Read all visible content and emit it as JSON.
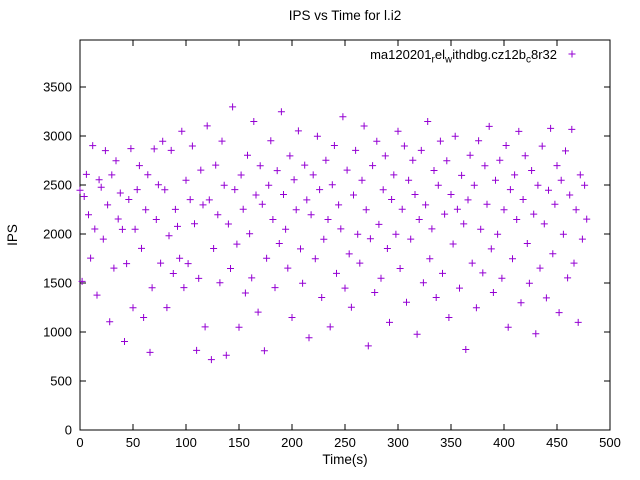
{
  "title": "IPS vs Time for l.i2",
  "chart_data": {
    "type": "scatter",
    "title": "IPS vs Time for l.i2",
    "xlabel": "Time(s)",
    "ylabel": "IPS",
    "xlim": [
      0,
      500
    ],
    "ylim": [
      0,
      3980
    ],
    "xticks": [
      0,
      50,
      100,
      150,
      200,
      250,
      300,
      350,
      400,
      450,
      500
    ],
    "yticks": [
      0,
      500,
      1000,
      1500,
      2000,
      2500,
      3000,
      3500
    ],
    "grid": false,
    "marker": {
      "shape": "plus",
      "color": "#9400d3"
    },
    "legend": {
      "position": "top-right-inside",
      "label_plain": "ma120201_rel_withdbg.cz12b_c8r32",
      "segments": [
        {
          "text": "ma120201",
          "sub": false
        },
        {
          "text": "r",
          "sub": true
        },
        {
          "text": "el",
          "sub": false
        },
        {
          "text": "w",
          "sub": true
        },
        {
          "text": "ithdbg.cz12b",
          "sub": false
        },
        {
          "text": "c",
          "sub": true
        },
        {
          "text": "8r32",
          "sub": false
        }
      ]
    },
    "series": [
      {
        "name": "ma120201_rel_withdbg.cz12b_c8r32",
        "x": [
          0,
          2,
          4,
          6,
          8,
          10,
          12,
          14,
          16,
          18,
          20,
          22,
          24,
          26,
          28,
          30,
          32,
          34,
          36,
          38,
          40,
          42,
          44,
          46,
          48,
          50,
          52,
          54,
          56,
          58,
          60,
          62,
          64,
          66,
          68,
          70,
          72,
          74,
          76,
          78,
          80,
          82,
          84,
          86,
          88,
          90,
          92,
          94,
          96,
          98,
          100,
          102,
          104,
          106,
          108,
          110,
          112,
          114,
          116,
          118,
          120,
          122,
          124,
          126,
          128,
          130,
          132,
          134,
          136,
          138,
          140,
          142,
          144,
          146,
          148,
          150,
          152,
          154,
          156,
          158,
          160,
          162,
          164,
          166,
          168,
          170,
          172,
          174,
          176,
          178,
          180,
          182,
          184,
          186,
          188,
          190,
          192,
          194,
          196,
          198,
          200,
          202,
          204,
          206,
          208,
          210,
          212,
          214,
          216,
          218,
          220,
          222,
          224,
          226,
          228,
          230,
          232,
          234,
          236,
          238,
          240,
          242,
          244,
          246,
          248,
          250,
          252,
          254,
          256,
          258,
          260,
          262,
          264,
          266,
          268,
          270,
          272,
          274,
          276,
          278,
          280,
          282,
          284,
          286,
          288,
          290,
          292,
          294,
          296,
          298,
          300,
          302,
          304,
          306,
          308,
          310,
          312,
          314,
          316,
          318,
          320,
          322,
          324,
          326,
          328,
          330,
          332,
          334,
          336,
          338,
          340,
          342,
          344,
          346,
          348,
          350,
          352,
          354,
          356,
          358,
          360,
          362,
          364,
          366,
          368,
          370,
          372,
          374,
          376,
          378,
          380,
          382,
          384,
          386,
          388,
          390,
          392,
          394,
          396,
          398,
          400,
          402,
          404,
          406,
          408,
          410,
          412,
          414,
          416,
          418,
          420,
          422,
          424,
          426,
          428,
          430,
          432,
          434,
          436,
          438,
          440,
          442,
          444,
          446,
          448,
          450,
          452,
          454,
          456,
          458,
          460,
          462,
          464,
          466,
          468,
          470,
          472,
          474,
          476,
          478
        ],
        "y": [
          2447,
          1516,
          2383,
          2608,
          2196,
          1754,
          2902,
          2051,
          1377,
          2554,
          2478,
          1948,
          2851,
          2297,
          1104,
          2603,
          1652,
          2748,
          2153,
          2419,
          2047,
          903,
          1698,
          2352,
          2872,
          1247,
          2049,
          2453,
          2698,
          1853,
          1148,
          2247,
          2604,
          792,
          1451,
          2869,
          2148,
          2503,
          1703,
          2947,
          2452,
          1249,
          1982,
          2853,
          1597,
          2251,
          2078,
          1752,
          3048,
          1453,
          2548,
          1698,
          2351,
          2898,
          2104,
          812,
          1547,
          2652,
          2297,
          1052,
          3103,
          2348,
          718,
          1852,
          2703,
          2197,
          1503,
          2948,
          2497,
          763,
          2102,
          1648,
          3297,
          2453,
          1897,
          1048,
          2602,
          2253,
          1398,
          2803,
          2003,
          1552,
          3148,
          2398,
          1203,
          2697,
          2303,
          808,
          1752,
          2498,
          2952,
          2148,
          1453,
          2647,
          1903,
          3247,
          2403,
          2048,
          1652,
          2797,
          1148,
          2553,
          2247,
          3052,
          1848,
          1497,
          2703,
          2348,
          942,
          2197,
          2603,
          1748,
          2998,
          2453,
          1352,
          1947,
          2752,
          2148,
          1052,
          2503,
          2903,
          1598,
          2297,
          2052,
          3197,
          1448,
          2652,
          1797,
          1252,
          2398,
          2853,
          1998,
          1703,
          2548,
          3102,
          2247,
          858,
          1952,
          2698,
          1403,
          2947,
          2098,
          1548,
          2452,
          2797,
          1852,
          1098,
          2352,
          2603,
          1997,
          3048,
          1648,
          2253,
          2898,
          1303,
          2548,
          1948,
          2752,
          2403,
          978,
          2148,
          2853,
          1503,
          2297,
          3148,
          1748,
          2052,
          2648,
          1352,
          2497,
          2948,
          1598,
          2203,
          2748,
          1148,
          2403,
          1898,
          2997,
          2252,
          1448,
          2598,
          2103,
          822,
          2348,
          2803,
          1703,
          2498,
          1248,
          2952,
          2048,
          1603,
          2697,
          2303,
          3098,
          1848,
          1403,
          2548,
          1998,
          2753,
          1548,
          2247,
          2903,
          1048,
          2453,
          1748,
          2603,
          2148,
          3047,
          1298,
          2352,
          2798,
          1903,
          1498,
          2648,
          2203,
          982,
          2498,
          1652,
          2897,
          2103,
          1348,
          2447,
          3078,
          1798,
          2303,
          2698,
          1198,
          2548,
          1997,
          2848,
          1552,
          2398,
          3068,
          1703,
          2248,
          1098,
          2603,
          1948,
          2497,
          2152
        ]
      }
    ]
  }
}
